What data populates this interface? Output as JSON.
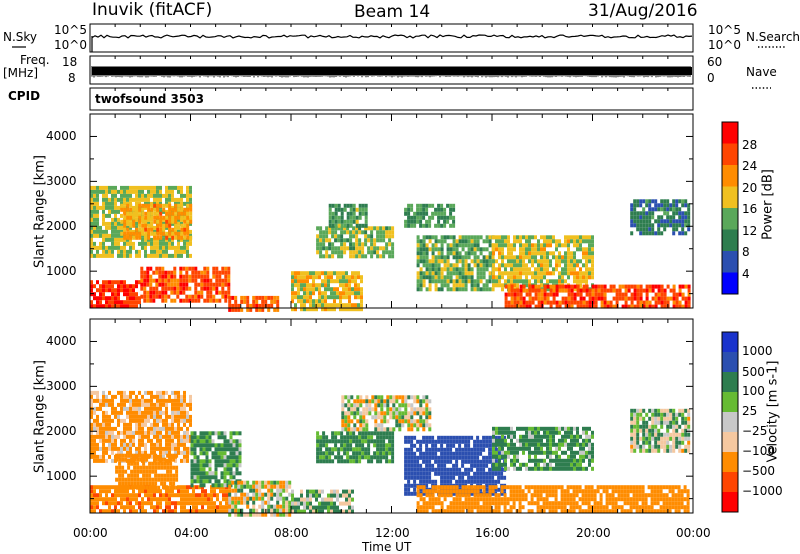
{
  "header": {
    "station": "Inuvik (fitACF)",
    "beam": "Beam 14",
    "date": "31/Aug/2016"
  },
  "panel_labels": {
    "nsky": "N.Sky",
    "nsearch": "N.Search",
    "freq": "Freq.",
    "freq_unit": "[MHz]",
    "nave": "Nave",
    "cpid": "CPID",
    "cpid_value": "twofsound 3503"
  },
  "noise_axis": {
    "left": [
      "10^5",
      "10^0"
    ],
    "right": [
      "10^5",
      "10^0"
    ]
  },
  "freq_axis": {
    "left": [
      "18",
      "8"
    ],
    "right": [
      "60",
      "0"
    ]
  },
  "colors": {
    "power": [
      "#0000ff",
      "#2b4fb0",
      "#2e7d4f",
      "#5aa85a",
      "#f0c020",
      "#ff8c00",
      "#ff4500",
      "#ff0000"
    ],
    "velocity": [
      "#ff0000",
      "#ff4500",
      "#ff8c00",
      "#f5c8a0",
      "#c8c8c8",
      "#66bb33",
      "#2e7d4f",
      "#2b4fb0",
      "#1a33cc"
    ]
  },
  "chart_data": [
    {
      "type": "heatmap",
      "title": "Power",
      "xlabel": "Time UT",
      "ylabel": "Slant Range [km]",
      "x_ticks": [
        "00:00",
        "04:00",
        "08:00",
        "12:00",
        "16:00",
        "20:00",
        "00:00"
      ],
      "y_ticks": [
        1000,
        2000,
        3000,
        4000
      ],
      "xlim": [
        0,
        24
      ],
      "ylim": [
        180,
        4500
      ],
      "colorbar": {
        "label": "Power [dB]",
        "ticks": [
          4,
          8,
          12,
          16,
          20,
          24,
          28
        ],
        "range": [
          0,
          32
        ]
      },
      "regions": [
        {
          "x": [
            0.0,
            2.0
          ],
          "y": [
            180,
            800
          ],
          "level": 28
        },
        {
          "x": [
            2.0,
            5.5
          ],
          "y": [
            300,
            1100
          ],
          "level": 26
        },
        {
          "x": [
            5.5,
            7.5
          ],
          "y": [
            180,
            450
          ],
          "level": 25
        },
        {
          "x": [
            0.0,
            4.0
          ],
          "y": [
            1300,
            2900
          ],
          "level": 16
        },
        {
          "x": [
            1.2,
            4.0
          ],
          "y": [
            1700,
            2500
          ],
          "level": 21
        },
        {
          "x": [
            8.0,
            10.8
          ],
          "y": [
            180,
            1000
          ],
          "level": 18
        },
        {
          "x": [
            9.0,
            12.0
          ],
          "y": [
            1300,
            2000
          ],
          "level": 15
        },
        {
          "x": [
            9.5,
            11.0
          ],
          "y": [
            2000,
            2500
          ],
          "level": 13
        },
        {
          "x": [
            12.5,
            14.5
          ],
          "y": [
            2000,
            2500
          ],
          "level": 12
        },
        {
          "x": [
            13.0,
            16.0
          ],
          "y": [
            600,
            1800
          ],
          "level": 14
        },
        {
          "x": [
            16.0,
            20.0
          ],
          "y": [
            600,
            1800
          ],
          "level": 17
        },
        {
          "x": [
            16.5,
            23.8
          ],
          "y": [
            200,
            700
          ],
          "level": 26
        },
        {
          "x": [
            21.5,
            23.8
          ],
          "y": [
            1800,
            2600
          ],
          "level": 9
        }
      ]
    },
    {
      "type": "heatmap",
      "title": "Velocity",
      "xlabel": "Time UT",
      "ylabel": "Slant Range [km]",
      "x_ticks": [
        "00:00",
        "04:00",
        "08:00",
        "12:00",
        "16:00",
        "20:00",
        "00:00"
      ],
      "y_ticks": [
        1000,
        2000,
        3000,
        4000
      ],
      "xlim": [
        0,
        24
      ],
      "ylim": [
        180,
        4500
      ],
      "colorbar": {
        "label": "Velocity [m s-1]",
        "ticks": [
          "1000",
          "500",
          "100",
          "25",
          "−25",
          "−100",
          "−500",
          "−1000"
        ]
      },
      "regions": [
        {
          "x": [
            0.0,
            5.5
          ],
          "y": [
            180,
            800
          ],
          "level": -400
        },
        {
          "x": [
            0.0,
            4.0
          ],
          "y": [
            1300,
            2900
          ],
          "level": -150
        },
        {
          "x": [
            1.0,
            3.5
          ],
          "y": [
            700,
            1500
          ],
          "level": -300
        },
        {
          "x": [
            4.0,
            6.0
          ],
          "y": [
            800,
            2000
          ],
          "level": 150
        },
        {
          "x": [
            5.5,
            8.0
          ],
          "y": [
            180,
            900
          ],
          "level": 0
        },
        {
          "x": [
            8.0,
            10.5
          ],
          "y": [
            180,
            700
          ],
          "level": 80
        },
        {
          "x": [
            9.0,
            12.0
          ],
          "y": [
            1300,
            2000
          ],
          "level": 200
        },
        {
          "x": [
            10.0,
            13.5
          ],
          "y": [
            2000,
            2800
          ],
          "level": 0
        },
        {
          "x": [
            12.5,
            16.5
          ],
          "y": [
            600,
            1900
          ],
          "level": 800
        },
        {
          "x": [
            13.0,
            23.8
          ],
          "y": [
            200,
            800
          ],
          "level": -300
        },
        {
          "x": [
            16.0,
            20.0
          ],
          "y": [
            1200,
            2100
          ],
          "level": 150
        },
        {
          "x": [
            21.5,
            23.8
          ],
          "y": [
            1600,
            2500
          ],
          "level": 50
        }
      ]
    }
  ]
}
